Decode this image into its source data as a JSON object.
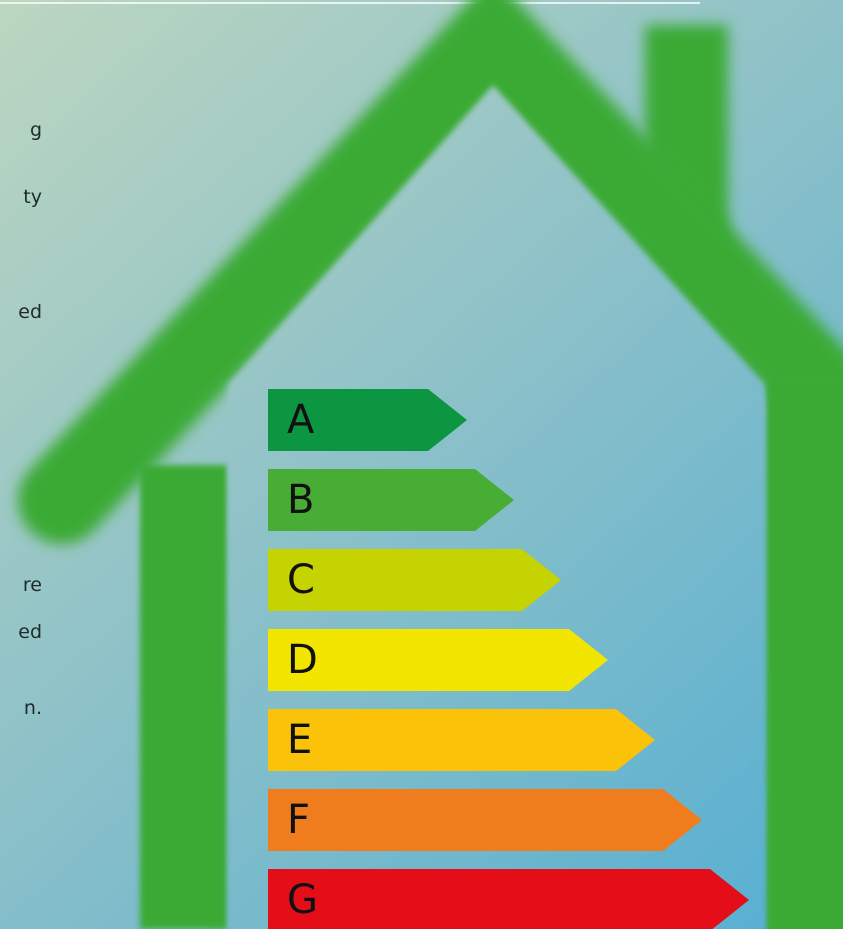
{
  "text_fragments": [
    "g",
    "ty",
    "ed",
    "re",
    "ed",
    "n."
  ],
  "energy_ratings": [
    {
      "label": "A",
      "color": "#0c9641"
    },
    {
      "label": "B",
      "color": "#47ad35"
    },
    {
      "label": "C",
      "color": "#c4d301"
    },
    {
      "label": "D",
      "color": "#f2e500"
    },
    {
      "label": "E",
      "color": "#fbc20a"
    },
    {
      "label": "F",
      "color": "#ef7d1e"
    },
    {
      "label": "G",
      "color": "#e30e18"
    }
  ]
}
